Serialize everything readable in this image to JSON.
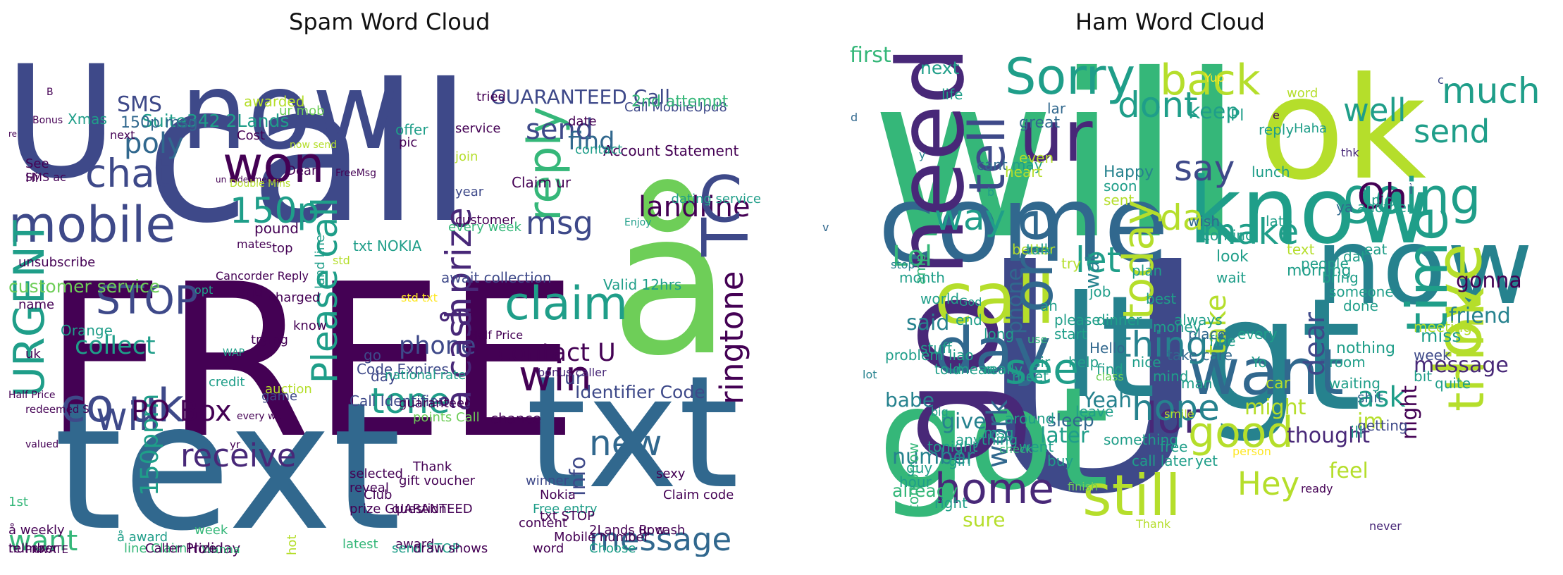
{
  "panels": [
    {
      "title": "Spam Word Cloud",
      "words": [
        "FREE",
        "text",
        "call",
        "txt",
        "å",
        "U",
        "now",
        "mobile",
        "won",
        "150p",
        "chat",
        "STOP",
        "URGENT",
        "will",
        "reply",
        "claim",
        "win",
        "tone",
        "receive",
        "send",
        "find",
        "poly",
        "msg",
        "landline",
        "T",
        "C",
        "ringtone",
        "new",
        "message",
        "collect",
        "phone",
        "contact U",
        "co uk",
        "Please call",
        "150ppm",
        "å prize",
        "å cash",
        "PO Box",
        "customer service",
        "want",
        "SMS",
        "GUARANTEED Call",
        "Suite342 2Lands",
        "Xmas",
        "150p msg",
        "Orange",
        "offer",
        "ur mob",
        "txt NOKIA",
        "awarded",
        "Code Expires",
        "Call Identifier",
        "Identifier Code",
        "chance",
        "info",
        "ur",
        "go",
        "day",
        "await collection",
        "Valid 12hrs",
        "dating service",
        "Call MobileUpd8",
        "Account Statement",
        "Claim ur",
        "2nd attempt",
        "service",
        "join",
        "pic",
        "date",
        "contact",
        "year",
        "customer",
        "pound",
        "every week",
        "trying",
        "game",
        "auction",
        "credit",
        "charged",
        "know",
        "top",
        "end",
        "land line",
        "national rate",
        "guaranteed",
        "points Call",
        "Mobile number",
        "content",
        "Thank",
        "Club",
        "question",
        "award",
        "send STOP",
        "draw shows",
        "winner",
        "Nokia",
        "Free entry",
        "txt STOP",
        "2Lands Row",
        "word",
        "sexy",
        "Claim code",
        "ur cash",
        "Choose",
        "Holiday",
        "week",
        "Wanna",
        "prize GUARANTEED",
        "latest",
        "hot",
        "selected",
        "reveal",
        "gift voucher",
        "1st",
        "å weekly",
        "å award",
        "line Claim",
        "tell ur",
        "number",
        "PRIVATE",
        "Caller Prize",
        "unsubscribe",
        "name",
        "opt",
        "uk",
        "See",
        "Hi",
        "SMS ac",
        "Cost",
        "Dear",
        "tried",
        "next",
        "B",
        "Bonus",
        "un redeemed",
        "now send",
        "FreeMsg",
        "Double Mins",
        "Enjoy",
        "mates",
        "Cancorder Reply",
        "redeemed S",
        "yr",
        "valued",
        "every wk",
        "Half Price",
        "WAP",
        "re",
        "std",
        "std txt",
        "Half Price",
        "bonus caller"
      ]
    },
    {
      "title": "Ham Word Cloud",
      "words": [
        "U",
        "will",
        "ok",
        "lt",
        "gt",
        "got",
        "go",
        "come",
        "know",
        "now",
        "need",
        "call",
        "day",
        "ur",
        "want",
        "still",
        "love",
        "time",
        "home",
        "good",
        "Sorry",
        "one",
        "tell",
        "back",
        "dont",
        "today",
        "see",
        "going",
        "think",
        "say",
        "well",
        "send",
        "much",
        "make",
        "lor",
        "da",
        "Oh",
        "way",
        "thing",
        "hope",
        "Hey",
        "take",
        "ask",
        "dear",
        "work",
        "let",
        "Lol",
        "said",
        "babe",
        "number",
        "already",
        "later",
        "im",
        "give",
        "phone",
        "Yeah",
        "amp",
        "wat",
        "sure",
        "sleep",
        "tomorrow",
        "feel",
        "thought",
        "might",
        "night",
        "message",
        "gonna",
        "friend",
        "miss",
        "first",
        "keep",
        "next",
        "life",
        "great",
        "lar",
        "cant",
        "even",
        "may",
        "better",
        "sent",
        "try",
        "Happy",
        "heart",
        "soon",
        "wish",
        "coming",
        "reply",
        "lunch",
        "Haha",
        "Pl",
        "word",
        "another",
        "ya",
        "pick",
        "late",
        "eat",
        "look",
        "wait",
        "morning",
        "text",
        "meeting",
        "week",
        "people",
        "bring",
        "dat",
        "someone",
        "done",
        "nothing",
        "room",
        "shit",
        "waiting",
        "getting",
        "bit",
        "quite",
        "ill",
        "car",
        "Yo",
        "every",
        "fine",
        "place",
        "take care",
        "man",
        "mind",
        "nice",
        "find",
        "Hello",
        "help",
        "start",
        "sir",
        "meet",
        "really",
        "mean",
        "told",
        "stuff",
        "please",
        "job",
        "dinner",
        "best",
        "money",
        "always",
        "ah",
        "talk",
        "plan",
        "leave",
        "around",
        "msg",
        "anything",
        "tonight",
        "girl",
        "guy",
        "hour",
        "right",
        "went",
        "buy",
        "something",
        "call later",
        "free",
        "yet",
        "problem",
        "liao",
        "long",
        "end",
        "world",
        "month",
        "lot",
        "big",
        "check",
        "finish",
        "Thank",
        "Yup",
        "e",
        "thk",
        "Ì",
        "v",
        "stop",
        "God",
        "use",
        "class",
        "smile",
        "person",
        "ready",
        "never",
        "c",
        "d",
        "y",
        "b"
      ]
    }
  ],
  "colors": [
    "#440154",
    "#482878",
    "#3e4989",
    "#31688e",
    "#26828e",
    "#1f9e89",
    "#35b779",
    "#6ece58",
    "#b5de2b",
    "#fde725"
  ]
}
